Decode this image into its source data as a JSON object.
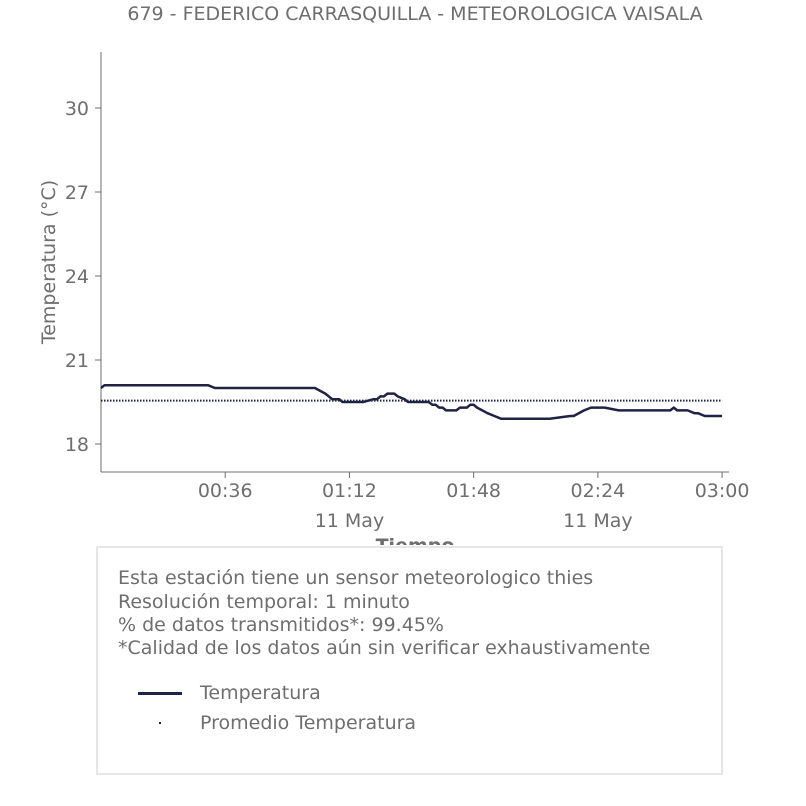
{
  "title": "679 - FEDERICO CARRASQUILLA - METEOROLOGICA VAISALA",
  "colors": {
    "series": "#1f2344",
    "text": "#6e6e6e",
    "axis": "#6e6e6e",
    "box_border": "#e6e6e6"
  },
  "info": {
    "line1": "Esta estación tiene un sensor meteorologico thies",
    "line2": "Resolución temporal: 1 minuto",
    "line3": "% de datos transmitidos*: 99.45%",
    "line4": "*Calidad de los datos aún sin verificar exhaustivamente"
  },
  "chart_data": {
    "type": "line",
    "title": "679 - FEDERICO CARRASQUILLA - METEOROLOGICA VAISALA",
    "xlabel": "Tiempo",
    "ylabel": "Temperatura (°C)",
    "ylim": [
      17,
      32
    ],
    "xlim": [
      "11 May 00:00",
      "11 May 03:00"
    ],
    "grid": false,
    "x_ticks": [
      "00:36",
      "01:12",
      "01:48",
      "02:24",
      "03:00"
    ],
    "x_tick_dates": [
      "",
      "11 May",
      "",
      "11 May",
      ""
    ],
    "y_ticks": [
      18,
      21,
      24,
      27,
      30
    ],
    "legend": {
      "position": "inside-box-below",
      "entries": [
        "Temperatura",
        "Promedio Temperatura"
      ]
    },
    "series": [
      {
        "name": "Temperatura",
        "style": "solid",
        "x": [
          "00:00",
          "00:01",
          "00:05",
          "00:10",
          "00:18",
          "00:19",
          "00:30",
          "00:31",
          "00:33",
          "00:34",
          "00:36",
          "00:37",
          "00:38",
          "00:40",
          "00:41",
          "00:44",
          "00:45",
          "00:48",
          "00:49",
          "00:50",
          "00:52",
          "00:54",
          "00:55",
          "01:02",
          "01:05",
          "01:07",
          "01:09",
          "01:10",
          "01:12",
          "01:15",
          "01:16",
          "01:19",
          "01:20",
          "01:21",
          "01:22",
          "01:23",
          "01:25",
          "01:26",
          "01:28",
          "01:29",
          "01:35",
          "01:36",
          "01:37",
          "01:38",
          "01:39",
          "01:40",
          "01:41",
          "01:42",
          "01:43",
          "01:44",
          "01:46",
          "01:47",
          "01:48",
          "01:49",
          "01:52",
          "01:54",
          "01:56",
          "01:57",
          "02:00",
          "02:05",
          "02:10",
          "02:16",
          "02:17",
          "02:20",
          "02:22",
          "02:23",
          "02:24",
          "02:25",
          "02:26",
          "02:30",
          "02:31",
          "02:33",
          "02:34",
          "02:45",
          "02:46",
          "02:47",
          "02:48",
          "02:50",
          "02:52",
          "02:53",
          "02:55",
          "02:56",
          "02:57",
          "02:58",
          "02:59",
          "03:00"
        ],
        "y": [
          20.0,
          20.1,
          20.1,
          20.1,
          20.1,
          20.1,
          20.1,
          20.1,
          20.0,
          20.0,
          20.0,
          20.0,
          20.0,
          20.0,
          20.0,
          20.0,
          20.0,
          20.0,
          20.0,
          20.0,
          20.0,
          20.0,
          20.0,
          20.0,
          19.8,
          19.6,
          19.6,
          19.5,
          19.5,
          19.5,
          19.5,
          19.6,
          19.6,
          19.7,
          19.7,
          19.8,
          19.8,
          19.7,
          19.6,
          19.5,
          19.5,
          19.4,
          19.4,
          19.3,
          19.3,
          19.2,
          19.2,
          19.2,
          19.2,
          19.3,
          19.3,
          19.4,
          19.4,
          19.3,
          19.1,
          19.0,
          18.9,
          18.9,
          18.9,
          18.9,
          18.9,
          19.0,
          19.0,
          19.2,
          19.3,
          19.3,
          19.3,
          19.3,
          19.3,
          19.2,
          19.2,
          19.2,
          19.2,
          19.2,
          19.3,
          19.2,
          19.2,
          19.2,
          19.1,
          19.1,
          19.0,
          19.0,
          19.0,
          19.0,
          19.0,
          19.0
        ]
      },
      {
        "name": "Promedio Temperatura",
        "style": "dotted",
        "x": [
          "00:00",
          "03:00"
        ],
        "y": [
          19.55,
          19.55
        ]
      }
    ]
  }
}
